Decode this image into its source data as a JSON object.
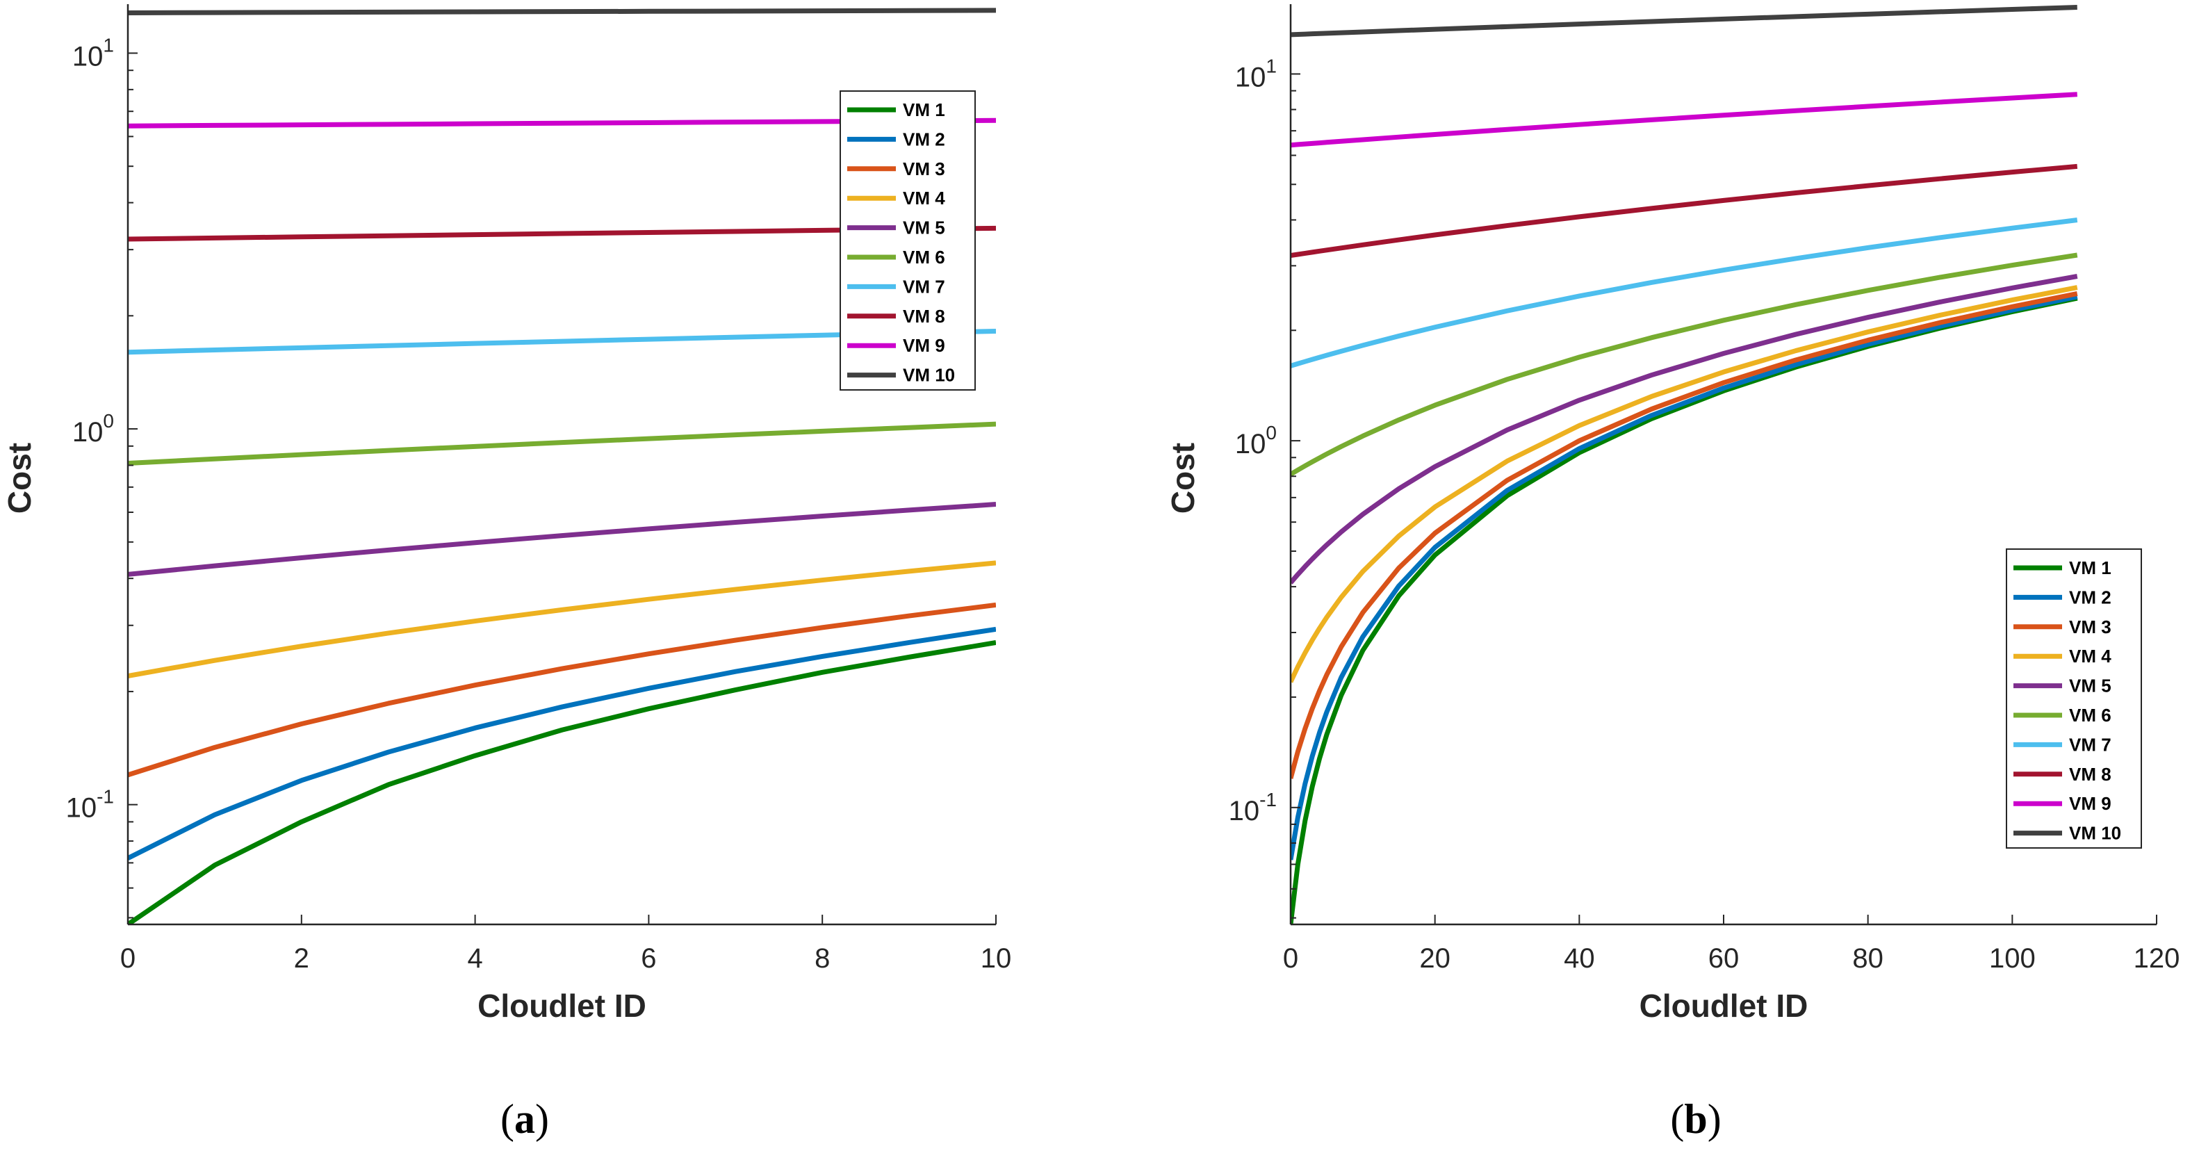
{
  "chart_data": [
    {
      "type": "line",
      "caption_letter": "a",
      "xlabel": "Cloudlet ID",
      "ylabel": "Cost",
      "yscale": "log",
      "xlim": [
        0,
        10
      ],
      "ylim": [
        0.048,
        13.5
      ],
      "xticks": [
        0,
        2,
        4,
        6,
        8,
        10
      ],
      "yticks": [
        {
          "value": 0.1,
          "base": "10",
          "exp": "-1"
        },
        {
          "value": 1,
          "base": "10",
          "exp": "0"
        },
        {
          "value": 10,
          "base": "10",
          "exp": "1"
        }
      ],
      "legend_position": "top-right",
      "series": [
        {
          "name": "VM 1",
          "color": "#008000",
          "x": [
            0,
            1,
            2,
            3,
            4,
            5,
            6,
            7,
            8,
            9,
            10
          ],
          "values": [
            0.048,
            0.069,
            0.09,
            0.113,
            0.135,
            0.158,
            0.18,
            0.202,
            0.225,
            0.247,
            0.27
          ]
        },
        {
          "name": "VM 2",
          "color": "#0072BD",
          "x": [
            0,
            1,
            2,
            3,
            4,
            5,
            6,
            7,
            8,
            9,
            10
          ],
          "values": [
            0.072,
            0.094,
            0.116,
            0.138,
            0.16,
            0.182,
            0.204,
            0.226,
            0.248,
            0.27,
            0.293
          ]
        },
        {
          "name": "VM 3",
          "color": "#D95319",
          "x": [
            0,
            1,
            2,
            3,
            4,
            5,
            6,
            7,
            8,
            9,
            10
          ],
          "values": [
            0.12,
            0.142,
            0.164,
            0.186,
            0.208,
            0.23,
            0.252,
            0.274,
            0.296,
            0.318,
            0.34
          ]
        },
        {
          "name": "VM 4",
          "color": "#EDB120",
          "x": [
            0,
            1,
            2,
            3,
            4,
            5,
            6,
            7,
            8,
            9,
            10
          ],
          "values": [
            0.22,
            0.242,
            0.264,
            0.286,
            0.308,
            0.33,
            0.352,
            0.374,
            0.396,
            0.418,
            0.44
          ]
        },
        {
          "name": "VM 5",
          "color": "#7E2F8E",
          "x": [
            0,
            1,
            2,
            3,
            4,
            5,
            6,
            7,
            8,
            9,
            10
          ],
          "values": [
            0.41,
            0.432,
            0.454,
            0.476,
            0.498,
            0.52,
            0.542,
            0.564,
            0.586,
            0.608,
            0.63
          ]
        },
        {
          "name": "VM 6",
          "color": "#77AC30",
          "x": [
            0,
            1,
            2,
            3,
            4,
            5,
            6,
            7,
            8,
            9,
            10
          ],
          "values": [
            0.81,
            0.832,
            0.854,
            0.876,
            0.898,
            0.92,
            0.942,
            0.964,
            0.986,
            1.008,
            1.03
          ]
        },
        {
          "name": "VM 7",
          "color": "#4DBEEE",
          "x": [
            0,
            1,
            2,
            3,
            4,
            5,
            6,
            7,
            8,
            9,
            10
          ],
          "values": [
            1.6,
            1.622,
            1.644,
            1.666,
            1.688,
            1.71,
            1.732,
            1.754,
            1.776,
            1.798,
            1.82
          ]
        },
        {
          "name": "VM 8",
          "color": "#A2142F",
          "x": [
            0,
            1,
            2,
            3,
            4,
            5,
            6,
            7,
            8,
            9,
            10
          ],
          "values": [
            3.2,
            3.222,
            3.244,
            3.266,
            3.288,
            3.31,
            3.332,
            3.354,
            3.376,
            3.398,
            3.42
          ]
        },
        {
          "name": "VM 9",
          "color": "#CC00CC",
          "x": [
            0,
            1,
            2,
            3,
            4,
            5,
            6,
            7,
            8,
            9,
            10
          ],
          "values": [
            6.4,
            6.422,
            6.444,
            6.466,
            6.488,
            6.51,
            6.532,
            6.554,
            6.576,
            6.598,
            6.62
          ]
        },
        {
          "name": "VM 10",
          "color": "#404040",
          "x": [
            0,
            1,
            2,
            3,
            4,
            5,
            6,
            7,
            8,
            9,
            10
          ],
          "values": [
            12.8,
            12.82,
            12.84,
            12.86,
            12.88,
            12.9,
            12.92,
            12.94,
            12.96,
            12.98,
            13.0
          ]
        }
      ]
    },
    {
      "type": "line",
      "caption_letter": "b",
      "xlabel": "Cloudlet ID",
      "ylabel": "Cost",
      "yscale": "log",
      "xlim": [
        0,
        120
      ],
      "ylim": [
        0.048,
        15.5
      ],
      "xticks": [
        0,
        20,
        40,
        60,
        80,
        100,
        120
      ],
      "yticks": [
        {
          "value": 0.1,
          "base": "10",
          "exp": "-1"
        },
        {
          "value": 1,
          "base": "10",
          "exp": "0"
        },
        {
          "value": 10,
          "base": "10",
          "exp": "1"
        }
      ],
      "legend_position": "bottom-right",
      "series": [
        {
          "name": "VM 1",
          "color": "#008000",
          "x": [
            0,
            1,
            2,
            3,
            4,
            5,
            7,
            10,
            15,
            20,
            30,
            40,
            50,
            60,
            70,
            80,
            90,
            100,
            109
          ],
          "values": [
            0.048,
            0.07,
            0.092,
            0.114,
            0.136,
            0.158,
            0.202,
            0.268,
            0.378,
            0.488,
            0.708,
            0.928,
            1.148,
            1.368,
            1.588,
            1.808,
            2.028,
            2.248,
            2.446
          ]
        },
        {
          "name": "VM 2",
          "color": "#0072BD",
          "x": [
            0,
            1,
            2,
            3,
            4,
            5,
            7,
            10,
            15,
            20,
            30,
            40,
            50,
            60,
            70,
            80,
            90,
            100,
            109
          ],
          "values": [
            0.072,
            0.094,
            0.116,
            0.138,
            0.16,
            0.182,
            0.226,
            0.292,
            0.402,
            0.512,
            0.732,
            0.952,
            1.172,
            1.392,
            1.612,
            1.832,
            2.052,
            2.272,
            2.47
          ]
        },
        {
          "name": "VM 3",
          "color": "#D95319",
          "x": [
            0,
            1,
            2,
            3,
            4,
            5,
            7,
            10,
            15,
            20,
            30,
            40,
            50,
            60,
            70,
            80,
            90,
            100,
            109
          ],
          "values": [
            0.12,
            0.142,
            0.164,
            0.186,
            0.208,
            0.23,
            0.274,
            0.34,
            0.45,
            0.56,
            0.78,
            1.0,
            1.22,
            1.44,
            1.66,
            1.88,
            2.1,
            2.32,
            2.518
          ]
        },
        {
          "name": "VM 4",
          "color": "#EDB120",
          "x": [
            0,
            1,
            2,
            3,
            4,
            5,
            7,
            10,
            15,
            20,
            30,
            40,
            50,
            60,
            70,
            80,
            90,
            100,
            109
          ],
          "values": [
            0.22,
            0.242,
            0.264,
            0.286,
            0.308,
            0.33,
            0.374,
            0.44,
            0.55,
            0.66,
            0.88,
            1.1,
            1.32,
            1.54,
            1.76,
            1.98,
            2.2,
            2.42,
            2.618
          ]
        },
        {
          "name": "VM 5",
          "color": "#7E2F8E",
          "x": [
            0,
            1,
            2,
            3,
            4,
            5,
            7,
            10,
            15,
            20,
            30,
            40,
            50,
            60,
            70,
            80,
            90,
            100,
            109
          ],
          "values": [
            0.41,
            0.432,
            0.454,
            0.476,
            0.498,
            0.52,
            0.564,
            0.63,
            0.74,
            0.85,
            1.07,
            1.29,
            1.51,
            1.73,
            1.95,
            2.17,
            2.39,
            2.61,
            2.808
          ]
        },
        {
          "name": "VM 6",
          "color": "#77AC30",
          "x": [
            0,
            1,
            2,
            3,
            4,
            5,
            7,
            10,
            15,
            20,
            30,
            40,
            50,
            60,
            70,
            80,
            90,
            100,
            109
          ],
          "values": [
            0.81,
            0.832,
            0.854,
            0.876,
            0.898,
            0.92,
            0.964,
            1.03,
            1.14,
            1.25,
            1.47,
            1.69,
            1.91,
            2.13,
            2.35,
            2.57,
            2.79,
            3.01,
            3.208
          ]
        },
        {
          "name": "VM 7",
          "color": "#4DBEEE",
          "x": [
            0,
            1,
            2,
            3,
            4,
            5,
            7,
            10,
            15,
            20,
            30,
            40,
            50,
            60,
            70,
            80,
            90,
            100,
            109
          ],
          "values": [
            1.6,
            1.622,
            1.644,
            1.666,
            1.688,
            1.71,
            1.754,
            1.82,
            1.93,
            2.04,
            2.26,
            2.48,
            2.7,
            2.92,
            3.14,
            3.36,
            3.58,
            3.8,
            3.998
          ]
        },
        {
          "name": "VM 8",
          "color": "#A2142F",
          "x": [
            0,
            1,
            2,
            3,
            4,
            5,
            7,
            10,
            15,
            20,
            30,
            40,
            50,
            60,
            70,
            80,
            90,
            100,
            109
          ],
          "values": [
            3.2,
            3.222,
            3.244,
            3.266,
            3.288,
            3.31,
            3.354,
            3.42,
            3.53,
            3.64,
            3.86,
            4.08,
            4.3,
            4.52,
            4.74,
            4.96,
            5.18,
            5.4,
            5.598
          ]
        },
        {
          "name": "VM 9",
          "color": "#CC00CC",
          "x": [
            0,
            1,
            2,
            3,
            4,
            5,
            7,
            10,
            15,
            20,
            30,
            40,
            50,
            60,
            70,
            80,
            90,
            100,
            109
          ],
          "values": [
            6.4,
            6.422,
            6.444,
            6.466,
            6.488,
            6.51,
            6.554,
            6.62,
            6.73,
            6.84,
            7.06,
            7.28,
            7.5,
            7.72,
            7.94,
            8.16,
            8.38,
            8.6,
            8.798
          ]
        },
        {
          "name": "VM 10",
          "color": "#404040",
          "x": [
            0,
            1,
            2,
            3,
            4,
            5,
            7,
            10,
            15,
            20,
            30,
            40,
            50,
            60,
            70,
            80,
            90,
            100,
            109
          ],
          "values": [
            12.8,
            12.822,
            12.844,
            12.866,
            12.888,
            12.91,
            12.954,
            13.02,
            13.13,
            13.24,
            13.46,
            13.68,
            13.9,
            14.12,
            14.34,
            14.56,
            14.78,
            15.0,
            15.198
          ]
        }
      ]
    }
  ]
}
